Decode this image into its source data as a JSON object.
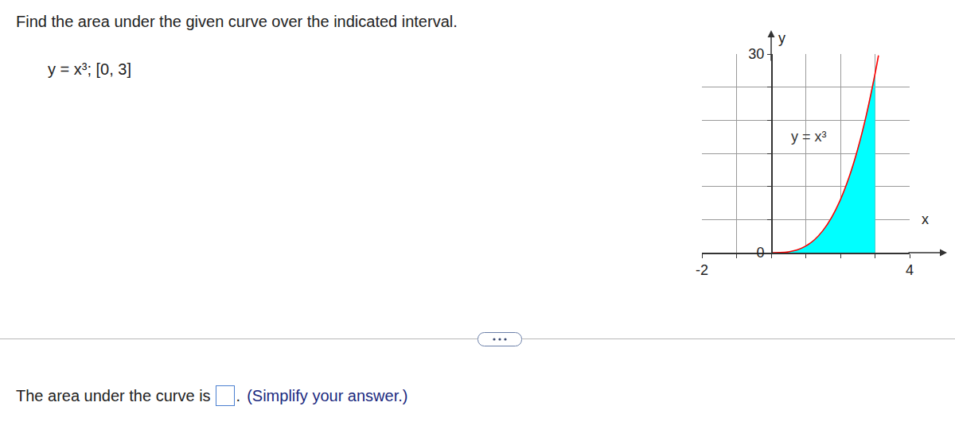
{
  "question": {
    "prompt": "Find the area under the given curve over the indicated interval.",
    "function": "y = x³; [0, 3]"
  },
  "chart_data": {
    "type": "area",
    "xlabel": "x",
    "ylabel": "y",
    "xlim": [
      -2,
      4
    ],
    "xticks": [
      -2,
      {
        "value": -1,
        "label": null
      },
      {
        "value": 0,
        "label": null
      },
      {
        "value": 1,
        "label": null
      },
      {
        "value": 2,
        "label": null
      },
      {
        "value": 3,
        "label": null
      },
      4
    ],
    "ylim": [
      0,
      30
    ],
    "yticks": [
      0,
      {
        "value": 5,
        "label": null
      },
      {
        "value": 10,
        "label": null
      },
      {
        "value": 15,
        "label": null
      },
      {
        "value": 20,
        "label": null
      },
      {
        "value": 25,
        "label": null
      },
      30
    ],
    "grid": true,
    "series": [
      {
        "type": "area",
        "color": "#00ffff",
        "x": [
          0,
          0.25,
          0.5,
          0.75,
          1,
          1.25,
          1.5,
          1.75,
          2,
          2.25,
          2.5,
          2.75,
          3
        ],
        "values": [
          0,
          0.016,
          0.125,
          0.42,
          1,
          1.95,
          3.375,
          5.36,
          8,
          11.39,
          15.63,
          20.8,
          27
        ]
      },
      {
        "type": "line",
        "color": "#ff0000",
        "x": [
          0,
          0.25,
          0.5,
          0.75,
          1,
          1.25,
          1.5,
          1.75,
          2,
          2.25,
          2.5,
          2.75,
          3,
          3.1
        ],
        "values": [
          0,
          0.016,
          0.125,
          0.42,
          1,
          1.95,
          3.375,
          5.36,
          8,
          11.39,
          15.63,
          20.8,
          27,
          29.79
        ]
      }
    ],
    "annotations": [
      {
        "text": "y = x³",
        "x": 1.1,
        "y": 17.5
      }
    ]
  },
  "answer": {
    "lead": "The area under the curve is",
    "period": ".",
    "hint": "(Simplify your answer.)"
  }
}
